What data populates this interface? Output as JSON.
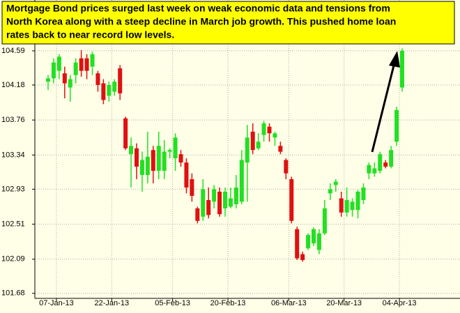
{
  "chart_data": {
    "type": "candlestick",
    "annotation": [
      "Mortgage Bond prices surged last week on weak economic data and tensions from",
      "North Korea along with a steep decline in March job growth. This pushed home loan",
      "rates back to near record low levels."
    ],
    "categories": [
      null,
      "07-Jan-13",
      null,
      null,
      null,
      null,
      null,
      null,
      null,
      null,
      null,
      "22-Jan-13",
      null,
      null,
      null,
      null,
      null,
      null,
      null,
      null,
      null,
      null,
      "05-Feb-13",
      null,
      null,
      null,
      null,
      null,
      null,
      null,
      null,
      null,
      "20-Feb-13",
      null,
      null,
      null,
      null,
      null,
      null,
      null,
      null,
      null,
      null,
      "06-Mar-13",
      null,
      null,
      null,
      null,
      null,
      null,
      null,
      null,
      null,
      "20-Mar-13",
      null,
      null,
      null,
      null,
      null,
      null,
      null,
      null,
      null,
      "04-Apr-13",
      null
    ],
    "open": [
      104.22,
      104.26,
      104.35,
      104.32,
      104.15,
      104.3,
      104.5,
      104.5,
      104.4,
      104.32,
      104.2,
      104.05,
      104.1,
      104.38,
      103.78,
      103.35,
      103.42,
      103.1,
      103.1,
      103.4,
      103.15,
      103.15,
      103.38,
      103.3,
      103.35,
      103.25,
      103.05,
      102.7,
      102.6,
      102.8,
      102.78,
      102.9,
      102.7,
      102.72,
      102.75,
      102.78,
      103.25,
      103.62,
      103.42,
      103.58,
      103.68,
      103.55,
      103.45,
      103.28,
      103.05,
      102.45,
      102.15,
      102.22,
      102.28,
      102.2,
      102.4,
      102.88,
      102.98,
      102.82,
      102.65,
      102.68,
      102.68,
      102.8,
      103.12,
      103.12,
      103.15,
      103.25,
      103.2,
      103.5,
      104.15
    ],
    "high": [
      104.3,
      104.5,
      104.55,
      104.4,
      104.3,
      104.5,
      104.6,
      104.55,
      104.58,
      104.35,
      104.25,
      104.22,
      104.25,
      104.42,
      103.8,
      103.55,
      103.48,
      103.38,
      103.62,
      103.45,
      103.62,
      103.52,
      103.42,
      103.6,
      103.4,
      103.3,
      103.12,
      102.72,
      103.05,
      102.95,
      102.98,
      102.95,
      102.95,
      102.95,
      103.1,
      103.4,
      103.7,
      103.72,
      103.6,
      103.75,
      103.72,
      103.62,
      103.5,
      103.3,
      103.08,
      102.48,
      102.18,
      102.4,
      102.47,
      102.45,
      102.8,
      103.0,
      103.05,
      102.9,
      102.95,
      102.82,
      102.92,
      103.0,
      103.25,
      103.25,
      103.38,
      103.28,
      103.45,
      103.92,
      104.62
    ],
    "low": [
      104.12,
      104.2,
      104.25,
      104.02,
      103.98,
      104.2,
      104.28,
      104.25,
      104.3,
      104.1,
      103.95,
      103.98,
      104.05,
      104.0,
      103.4,
      102.95,
      103.05,
      102.9,
      103.0,
      103.0,
      103.05,
      103.05,
      103.3,
      103.15,
      103.2,
      102.88,
      102.78,
      102.52,
      102.55,
      102.58,
      102.7,
      102.6,
      102.6,
      102.7,
      102.7,
      102.75,
      102.78,
      103.35,
      103.4,
      103.5,
      103.5,
      103.45,
      103.35,
      103.05,
      102.52,
      102.08,
      102.06,
      102.2,
      102.25,
      102.15,
      102.38,
      102.8,
      102.9,
      102.6,
      102.6,
      102.6,
      102.58,
      102.75,
      103.05,
      103.08,
      103.12,
      103.18,
      103.18,
      103.45,
      104.1
    ],
    "close": [
      104.26,
      104.45,
      104.52,
      104.2,
      104.25,
      104.45,
      104.35,
      104.35,
      104.55,
      104.18,
      104.0,
      104.18,
      104.22,
      104.08,
      103.42,
      103.45,
      103.2,
      103.28,
      103.32,
      103.15,
      103.45,
      103.38,
      103.4,
      103.55,
      103.25,
      102.95,
      102.85,
      102.55,
      102.93,
      102.62,
      102.93,
      102.63,
      102.9,
      102.82,
      102.95,
      103.28,
      103.55,
      103.4,
      103.5,
      103.72,
      103.6,
      103.6,
      103.38,
      103.12,
      102.55,
      102.1,
      102.08,
      102.38,
      102.45,
      102.4,
      102.7,
      102.93,
      103.02,
      102.65,
      102.8,
      102.78,
      102.9,
      102.95,
      103.22,
      103.18,
      103.35,
      103.2,
      103.4,
      103.88,
      104.59
    ],
    "up_color": "#22e022",
    "down_color": "#e01010",
    "ylim": [
      101.62,
      105.2
    ],
    "yticks": [
      101.68,
      102.09,
      102.51,
      102.93,
      103.34,
      103.76,
      104.18,
      104.59
    ],
    "grid": true
  }
}
